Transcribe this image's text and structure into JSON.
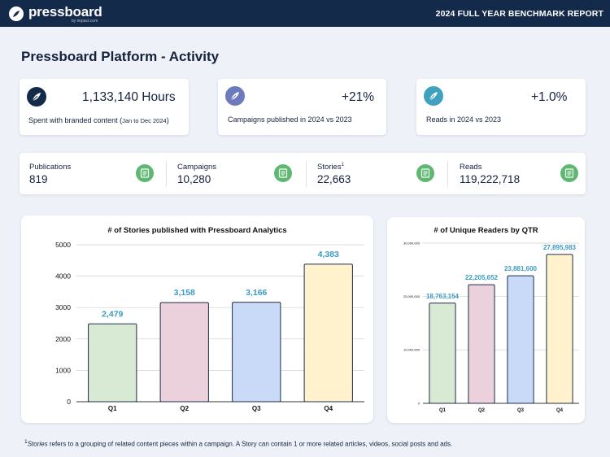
{
  "header": {
    "logo_text": "pressboard",
    "logo_sub": "by impact.com",
    "report_title": "2024 FULL YEAR BENCHMARK REPORT"
  },
  "page_title": "Pressboard Platform - Activity",
  "kpis": [
    {
      "value": "1,133,140 Hours",
      "label": "Spent with branded content (",
      "label_small": "Jan to Dec 2024",
      "label_end": ")",
      "icon": "feather-icon",
      "color": "#142a4a"
    },
    {
      "value": "+21%",
      "label": "Campaigns published in 2024 vs 2023",
      "icon": "feather-icon",
      "color": "#6d7bbd"
    },
    {
      "value": "+1.0%",
      "label": "Reads in 2024 vs 2023",
      "icon": "feather-icon",
      "color": "#3fa0bf"
    }
  ],
  "stats": [
    {
      "label": "Publications",
      "value": "819"
    },
    {
      "label": "Campaigns",
      "value": "10,280"
    },
    {
      "label": "Stories",
      "sup": "1",
      "value": "22,663"
    },
    {
      "label": "Reads",
      "value": "119,222,718"
    }
  ],
  "chart_data": [
    {
      "type": "bar",
      "title": "# of Stories published with Pressboard Analytics",
      "categories": [
        "Q1",
        "Q2",
        "Q3",
        "Q4"
      ],
      "values": [
        2479,
        3158,
        3166,
        4383
      ],
      "data_labels": [
        "2,479",
        "3,158",
        "3,166",
        "4,383"
      ],
      "yticks": [
        "0",
        "1000",
        "2000",
        "3000",
        "4000",
        "5000"
      ],
      "ylim": [
        0,
        5000
      ],
      "colors": [
        "#d8ead3",
        "#ead1dc",
        "#c9daf8",
        "#fff2cc"
      ],
      "grid": true
    },
    {
      "type": "bar",
      "title": "# of Unique Readers by QTR",
      "categories": [
        "Q1",
        "Q2",
        "Q3",
        "Q4"
      ],
      "values": [
        18763154,
        22205652,
        23881600,
        27895983
      ],
      "data_labels": [
        "18,763,154",
        "22,205,652",
        "23,881,600",
        "27,895,983"
      ],
      "yticks": [
        "0",
        "10,000,000",
        "20,000,000",
        "30,000,000"
      ],
      "ylim": [
        0,
        30000000
      ],
      "colors": [
        "#d8ead3",
        "#ead1dc",
        "#c9daf8",
        "#fff2cc"
      ],
      "grid": true
    }
  ],
  "colors": {
    "bar_outline": "#1c2b4a",
    "data_label": "#3b9bc4",
    "doc_icon": "#5fb872"
  },
  "footnote": {
    "sup": "1",
    "term": "Stories",
    "text": " refers to a grouping of related content pieces within a campaign.  A Story can contain 1 or more related articles, videos, social posts and ads."
  }
}
